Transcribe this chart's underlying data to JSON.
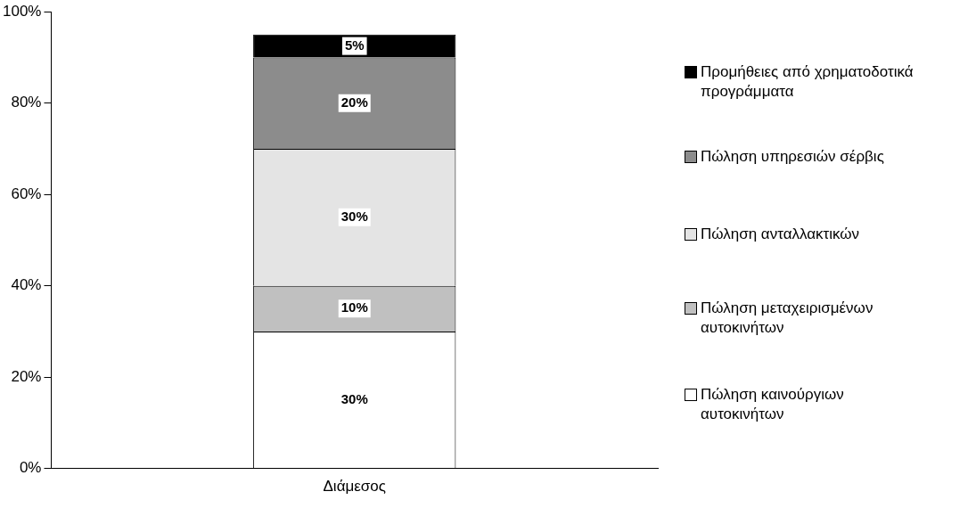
{
  "chart_data": {
    "type": "bar",
    "stacked": true,
    "categories": [
      "Διάμεσος"
    ],
    "series": [
      {
        "name": "Πώληση καινούργιων αυτοκινήτων",
        "color": "#ffffff",
        "values": [
          30
        ],
        "value_labels": [
          "30%"
        ]
      },
      {
        "name": "Πώληση μεταχειρισμένων αυτοκινήτων",
        "color": "#c0c0c0",
        "values": [
          10
        ],
        "value_labels": [
          "10%"
        ]
      },
      {
        "name": "Πώληση ανταλλακτικών",
        "color": "#e4e4e4",
        "values": [
          30
        ],
        "value_labels": [
          "30%"
        ]
      },
      {
        "name": "Πώληση υπηρεσιών σέρβις",
        "color": "#8c8c8c",
        "values": [
          20
        ],
        "value_labels": [
          "20%"
        ]
      },
      {
        "name": "Προμήθειες από χρηματοδοτικά προγράμματα",
        "color": "#000000",
        "values": [
          5
        ],
        "value_labels": [
          "5%"
        ]
      }
    ],
    "ylim": [
      0,
      100
    ],
    "yticks": [
      {
        "value": 0,
        "label": "0%"
      },
      {
        "value": 20,
        "label": "20%"
      },
      {
        "value": 40,
        "label": "40%"
      },
      {
        "value": 60,
        "label": "60%"
      },
      {
        "value": 80,
        "label": "80%"
      },
      {
        "value": 100,
        "label": "100%"
      }
    ],
    "grid": false,
    "legend": "right"
  }
}
